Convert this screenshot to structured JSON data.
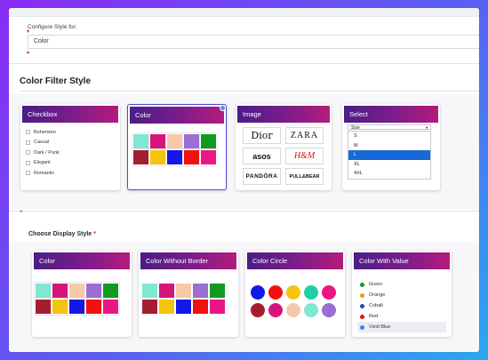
{
  "configure": {
    "label": "Configure Style for:",
    "value": "Color"
  },
  "filter_style": {
    "title": "Color Filter Style",
    "cards": {
      "checkbox": {
        "title": "Checkbox",
        "items": [
          "Bohemien",
          "Casual",
          "Dark / Punk",
          "Elegant",
          "Romantic"
        ]
      },
      "color": {
        "title": "Color",
        "selected": true,
        "swatches": [
          "#7fe7d2",
          "#d6157a",
          "#f7c9a8",
          "#9b6fd0",
          "#119a1f",
          "#a31f2f",
          "#f5c40d",
          "#1418e6",
          "#f21010",
          "#ea1687"
        ]
      },
      "image": {
        "title": "Image",
        "brands": [
          "Dior",
          "ZARA",
          "asos",
          "H&M",
          "PANDÖRA",
          "PULL&BEAR"
        ]
      },
      "select": {
        "title": "Select",
        "placeholder": "Size",
        "options": [
          "S",
          "M",
          "L",
          "XL",
          "4XL"
        ],
        "highlighted": "L"
      }
    }
  },
  "display_style": {
    "title": "Choose Display Style",
    "required_mark": "*",
    "cards": {
      "color": {
        "title": "Color",
        "swatches": [
          "#7fe7d2",
          "#d6157a",
          "#f7c9a8",
          "#9b6fd0",
          "#119a1f",
          "#a31f2f",
          "#f5c40d",
          "#1418e6",
          "#f21010",
          "#ea1687"
        ]
      },
      "color_without_border": {
        "title": "Color Without Border",
        "swatches": [
          "#7fe7d2",
          "#d6157a",
          "#f7c9a8",
          "#9b6fd0",
          "#119a1f",
          "#a31f2f",
          "#f5c40d",
          "#1418e6",
          "#f21010",
          "#ea1687"
        ]
      },
      "color_circle": {
        "title": "Color Circle",
        "circles": [
          "#1418e6",
          "#f21010",
          "#f5c40d",
          "#20cfa7",
          "#ea1687",
          "#a31f2f",
          "#d6157a",
          "#f7c9a8",
          "#7fe7d2",
          "#9b6fd0",
          "#119a1f"
        ]
      },
      "color_with_value": {
        "title": "Color With Value",
        "items": [
          {
            "label": "Green",
            "color": "#119a1f"
          },
          {
            "label": "Orange",
            "color": "#f59a0d"
          },
          {
            "label": "Cobalt",
            "color": "#1d4fb0"
          },
          {
            "label": "Red",
            "color": "#e01010"
          },
          {
            "label": "Vivid Blue",
            "color": "#2b8ee8"
          }
        ],
        "highlighted": "Vivid Blue"
      }
    }
  },
  "colors": {
    "accent_gradient_start": "#4b1d87",
    "accent_gradient_end": "#b51c7b",
    "selection_border": "#4d4bd3",
    "select_highlight": "#1769d6"
  }
}
